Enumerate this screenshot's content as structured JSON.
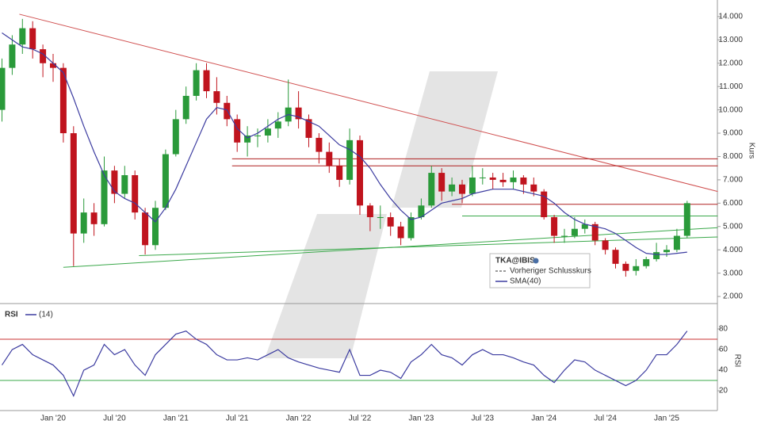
{
  "chart_data": [
    {
      "type": "candlestick",
      "name": "TKA@IBIS",
      "ylabel": "Kurs",
      "categories": [
        null,
        null,
        null,
        null,
        null,
        "Jan '20",
        null,
        null,
        null,
        null,
        null,
        "Jul '20",
        null,
        null,
        null,
        null,
        null,
        "Jan '21",
        null,
        null,
        null,
        null,
        null,
        "Jul '21",
        null,
        null,
        null,
        null,
        null,
        "Jan '22",
        null,
        null,
        null,
        null,
        null,
        "Jul '22",
        null,
        null,
        null,
        null,
        null,
        "Jan '23",
        null,
        null,
        null,
        null,
        null,
        "Jul '23",
        null,
        null,
        null,
        null,
        null,
        "Jan '24",
        null,
        null,
        null,
        null,
        null,
        "Jul '24",
        null,
        null,
        null,
        null,
        null,
        "Jan '25",
        null,
        null
      ],
      "open": [
        10.0,
        11.8,
        12.8,
        13.5,
        12.6,
        12.0,
        11.8,
        9.0,
        4.7,
        5.6,
        5.1,
        7.4,
        6.4,
        7.2,
        5.6,
        4.2,
        5.8,
        8.1,
        9.6,
        10.6,
        11.7,
        10.8,
        10.3,
        9.6,
        8.6,
        8.9,
        8.9,
        9.2,
        9.5,
        10.1,
        9.6,
        8.8,
        8.2,
        7.6,
        7.0,
        8.7,
        5.9,
        5.4,
        5.4,
        5.0,
        4.5,
        5.4,
        5.9,
        7.3,
        6.5,
        6.8,
        6.4,
        7.1,
        7.1,
        7.0,
        6.9,
        7.1,
        6.8,
        6.5,
        5.4,
        4.6,
        4.6,
        4.9,
        5.1,
        4.4,
        4.0,
        3.4,
        3.1,
        3.3,
        3.6,
        3.9,
        4.0,
        4.6
      ],
      "high": [
        12.2,
        13.2,
        13.9,
        13.8,
        12.8,
        12.4,
        12.0,
        9.3,
        6.2,
        6.0,
        8.0,
        7.6,
        7.6,
        7.4,
        5.8,
        6.1,
        8.3,
        10.0,
        11.0,
        12.0,
        12.0,
        11.4,
        10.6,
        9.8,
        9.3,
        9.2,
        9.6,
        9.9,
        11.3,
        10.8,
        9.8,
        9.0,
        8.6,
        7.9,
        9.2,
        8.9,
        6.0,
        5.9,
        5.6,
        5.2,
        5.6,
        6.2,
        7.6,
        7.5,
        7.1,
        7.0,
        7.6,
        7.5,
        7.3,
        7.3,
        7.4,
        7.2,
        7.1,
        6.6,
        5.5,
        4.9,
        5.4,
        5.3,
        5.2,
        4.5,
        4.1,
        3.5,
        3.6,
        3.7,
        4.3,
        4.2,
        4.9,
        6.1
      ],
      "low": [
        9.5,
        11.5,
        12.4,
        12.2,
        11.4,
        11.2,
        8.6,
        3.3,
        4.3,
        4.6,
        5.0,
        6.0,
        6.2,
        5.3,
        3.8,
        4.0,
        5.7,
        8.0,
        9.4,
        10.4,
        10.5,
        9.8,
        9.3,
        8.2,
        8.0,
        8.4,
        8.6,
        8.8,
        9.3,
        9.2,
        8.4,
        7.7,
        7.3,
        6.7,
        6.8,
        5.5,
        4.8,
        4.9,
        4.6,
        4.2,
        4.4,
        5.3,
        5.8,
        6.1,
        6.3,
        6.0,
        6.3,
        6.8,
        6.6,
        6.7,
        6.6,
        6.4,
        6.3,
        5.3,
        4.3,
        4.3,
        4.5,
        4.7,
        4.2,
        3.8,
        3.2,
        2.85,
        2.9,
        3.2,
        3.5,
        3.7,
        3.9,
        4.5
      ],
      "close": [
        11.8,
        12.8,
        13.5,
        12.6,
        12.0,
        11.8,
        9.0,
        4.7,
        5.6,
        5.1,
        7.4,
        6.4,
        7.2,
        5.6,
        4.2,
        5.8,
        8.1,
        9.6,
        10.6,
        11.7,
        10.8,
        10.3,
        9.6,
        8.6,
        8.9,
        8.9,
        9.2,
        9.5,
        10.1,
        9.6,
        8.8,
        8.2,
        7.6,
        7.0,
        8.7,
        5.9,
        5.4,
        5.4,
        5.0,
        4.5,
        5.4,
        5.9,
        7.3,
        6.5,
        6.8,
        6.4,
        7.1,
        7.1,
        7.0,
        6.9,
        7.1,
        6.8,
        6.5,
        5.4,
        4.6,
        4.6,
        4.9,
        5.1,
        4.4,
        4.0,
        3.4,
        3.1,
        3.3,
        3.6,
        3.9,
        4.0,
        4.6,
        6.0
      ],
      "up_color": "#2a9a3a",
      "down_color": "#c0141e",
      "series": [
        {
          "name": "SMA(40)",
          "color": "#3c3ca0",
          "values": [
            13.3,
            13.0,
            12.7,
            12.6,
            12.4,
            12.0,
            11.6,
            10.5,
            9.3,
            8.2,
            7.2,
            6.5,
            6.2,
            6.0,
            5.6,
            5.2,
            5.8,
            6.6,
            7.6,
            8.6,
            9.6,
            10.1,
            10.0,
            9.2,
            8.8,
            9.0,
            9.3,
            9.6,
            9.8,
            9.7,
            9.5,
            9.3,
            8.9,
            8.5,
            8.3,
            8.0,
            7.5,
            6.8,
            6.2,
            5.7,
            5.3,
            5.4,
            5.7,
            6.0,
            6.1,
            6.2,
            6.4,
            6.5,
            6.6,
            6.6,
            6.6,
            6.5,
            6.4,
            6.3,
            6.0,
            5.6,
            5.3,
            5.1,
            5.0,
            4.9,
            4.7,
            4.4,
            4.1,
            3.85,
            3.8,
            3.8,
            3.85,
            3.9
          ]
        }
      ],
      "reference_line": {
        "name": "Vorheriger Schlusskurs"
      },
      "drawings": [
        {
          "color": "#d05050",
          "x": [
            1.7,
            70
          ],
          "y": [
            14.1,
            6.5
          ]
        },
        {
          "color": "#b02020",
          "x": [
            22.5,
            70
          ],
          "y": [
            7.9,
            7.9
          ]
        },
        {
          "color": "#b02020",
          "x": [
            22.5,
            70
          ],
          "y": [
            7.6,
            7.6
          ]
        },
        {
          "color": "#b02020",
          "x": [
            44,
            70
          ],
          "y": [
            5.95,
            5.95
          ]
        },
        {
          "color": "#3aa84a",
          "x": [
            45,
            70
          ],
          "y": [
            5.45,
            5.45
          ]
        },
        {
          "color": "#3aa84a",
          "x": [
            6,
            70
          ],
          "y": [
            3.25,
            4.95
          ]
        },
        {
          "color": "#3aa84a",
          "x": [
            13.4,
            70
          ],
          "y": [
            3.75,
            4.55
          ]
        }
      ],
      "ylim": [
        1.73,
        14.71
      ],
      "yticks": [
        {
          "value": 2,
          "label": "2.000"
        },
        {
          "value": 3,
          "label": "3.000"
        },
        {
          "value": 4,
          "label": "4.000"
        },
        {
          "value": 5,
          "label": "5.000"
        },
        {
          "value": 6,
          "label": "6.000"
        },
        {
          "value": 7,
          "label": "7.000"
        },
        {
          "value": 8,
          "label": "8.000"
        },
        {
          "value": 9,
          "label": "9.000"
        },
        {
          "value": 10,
          "label": "10.000"
        },
        {
          "value": 11,
          "label": "11.000"
        },
        {
          "value": 12,
          "label": "12.000"
        },
        {
          "value": 13,
          "label": "13.000"
        },
        {
          "value": 14,
          "label": "14.000"
        }
      ]
    },
    {
      "type": "line",
      "title": "RSI",
      "ylabel": "RSI",
      "series": [
        {
          "name": "(14)",
          "color": "#3c3ca0",
          "values": [
            45,
            60,
            65,
            55,
            50,
            45,
            35,
            15,
            40,
            45,
            65,
            55,
            60,
            45,
            35,
            55,
            65,
            75,
            78,
            70,
            65,
            55,
            50,
            50,
            52,
            50,
            55,
            60,
            52,
            48,
            45,
            42,
            40,
            38,
            60,
            35,
            35,
            40,
            38,
            32,
            48,
            55,
            65,
            55,
            52,
            45,
            55,
            60,
            55,
            55,
            52,
            48,
            45,
            35,
            28,
            40,
            50,
            48,
            40,
            35,
            30,
            25,
            30,
            40,
            55,
            55,
            65,
            78
          ]
        }
      ],
      "levels": [
        {
          "value": 70,
          "color": "#c83030"
        },
        {
          "value": 30,
          "color": "#3aa84a"
        }
      ],
      "ylim": [
        0.8,
        100.8
      ],
      "yticks": [
        20,
        40,
        60,
        80
      ]
    }
  ]
}
